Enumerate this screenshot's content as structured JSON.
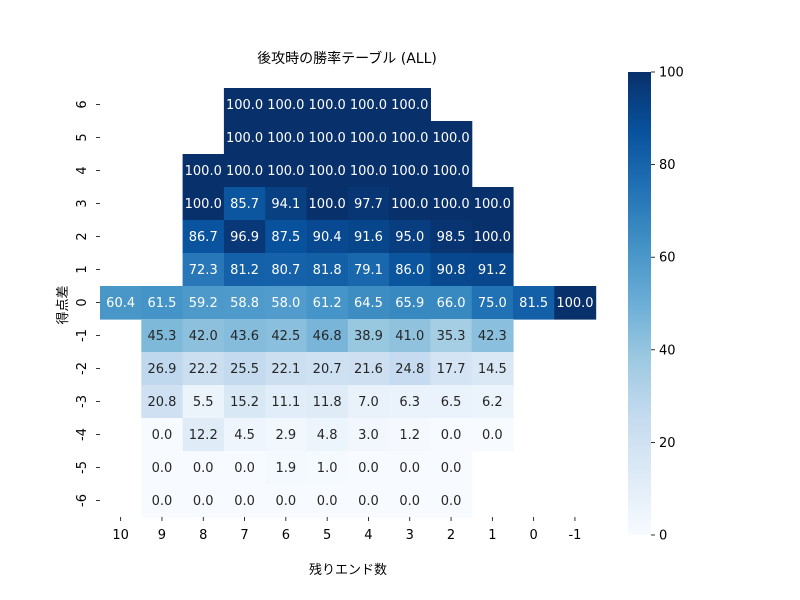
{
  "chart_data": {
    "type": "heatmap",
    "title": "後攻時の勝率テーブル (ALL)",
    "xlabel": "残りエンド数",
    "ylabel": "得点差",
    "x_categories": [
      "10",
      "9",
      "8",
      "7",
      "6",
      "5",
      "4",
      "3",
      "2",
      "1",
      "0",
      "-1"
    ],
    "y_categories": [
      "6",
      "5",
      "4",
      "3",
      "2",
      "1",
      "0",
      "-1",
      "-2",
      "-3",
      "-4",
      "-5",
      "-6"
    ],
    "values": [
      [
        null,
        null,
        null,
        100.0,
        100.0,
        100.0,
        100.0,
        100.0,
        null,
        null,
        null,
        null
      ],
      [
        null,
        null,
        null,
        100.0,
        100.0,
        100.0,
        100.0,
        100.0,
        100.0,
        null,
        null,
        null
      ],
      [
        null,
        null,
        100.0,
        100.0,
        100.0,
        100.0,
        100.0,
        100.0,
        100.0,
        null,
        null,
        null
      ],
      [
        null,
        null,
        100.0,
        85.7,
        94.1,
        100.0,
        97.7,
        100.0,
        100.0,
        100.0,
        null,
        null
      ],
      [
        null,
        null,
        86.7,
        96.9,
        87.5,
        90.4,
        91.6,
        95.0,
        98.5,
        100.0,
        null,
        null
      ],
      [
        null,
        null,
        72.3,
        81.2,
        80.7,
        81.8,
        79.1,
        86.0,
        90.8,
        91.2,
        null,
        null
      ],
      [
        60.4,
        61.5,
        59.2,
        58.8,
        58.0,
        61.2,
        64.5,
        65.9,
        66.0,
        75.0,
        81.5,
        100.0
      ],
      [
        null,
        45.3,
        42.0,
        43.6,
        42.5,
        46.8,
        38.9,
        41.0,
        35.3,
        42.3,
        null,
        null
      ],
      [
        null,
        26.9,
        22.2,
        25.5,
        22.1,
        20.7,
        21.6,
        24.8,
        17.7,
        14.5,
        null,
        null
      ],
      [
        null,
        20.8,
        5.5,
        15.2,
        11.1,
        11.8,
        7.0,
        6.3,
        6.5,
        6.2,
        null,
        null
      ],
      [
        null,
        0.0,
        12.2,
        4.5,
        2.9,
        4.8,
        3.0,
        1.2,
        0.0,
        0.0,
        null,
        null
      ],
      [
        null,
        0.0,
        0.0,
        0.0,
        1.9,
        1.0,
        0.0,
        0.0,
        0.0,
        null,
        null,
        null
      ],
      [
        null,
        0.0,
        0.0,
        0.0,
        0.0,
        0.0,
        0.0,
        0.0,
        0.0,
        null,
        null,
        null
      ]
    ],
    "value_format": "0.0",
    "colormap": "Blues",
    "vmin": 0,
    "vmax": 100,
    "colorbar_ticks": [
      0,
      20,
      40,
      60,
      80,
      100
    ],
    "colors": {
      "low": "#f7fbff",
      "high": "#08306b",
      "text_dark": "#262626",
      "text_light": "#ffffff"
    }
  }
}
